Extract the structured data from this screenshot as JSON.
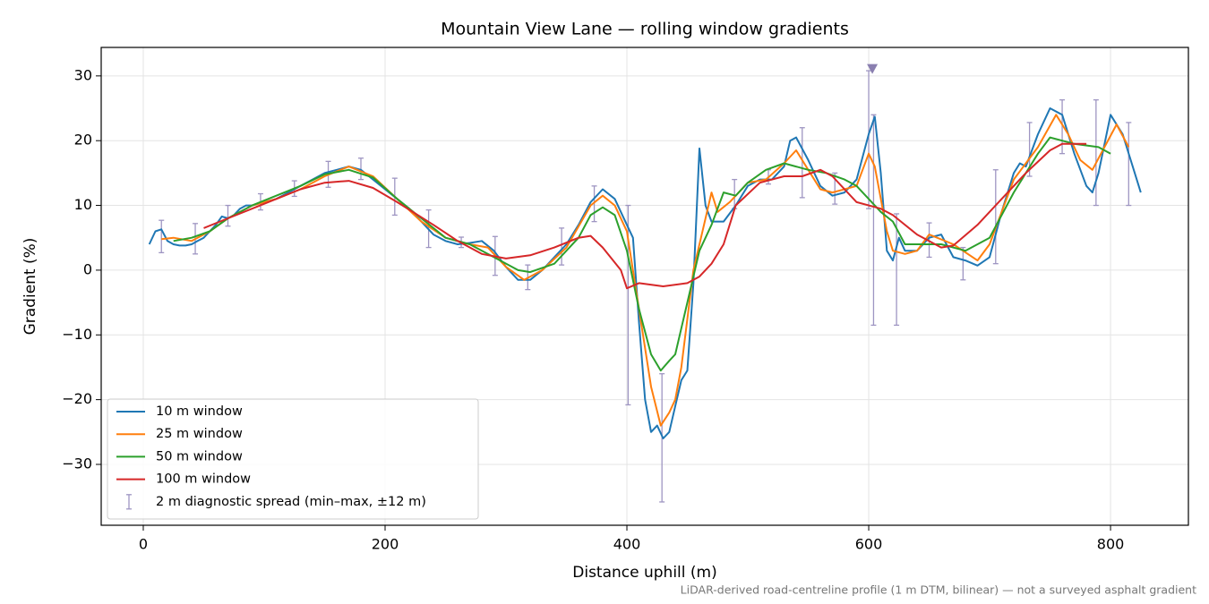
{
  "chart_data": {
    "type": "line",
    "title": "Mountain View Lane — rolling window gradients",
    "x_label": "Distance uphill (m)",
    "y_label": "Gradient (%)",
    "footnote": "LiDAR-derived road-centreline profile (1 m DTM, bilinear) — not a surveyed asphalt gradient",
    "xlim": [
      -34.8,
      864.4
    ],
    "ylim": [
      -39.4,
      34.4
    ],
    "xticks": [
      0,
      200,
      400,
      600,
      800
    ],
    "yticks": [
      {
        "value": -30,
        "label": "−30"
      },
      {
        "value": -20,
        "label": "−20"
      },
      {
        "value": -10,
        "label": "−10"
      },
      0,
      10,
      20,
      30
    ],
    "grid": true,
    "legend": "lower left",
    "series": [
      {
        "name": "10 m window",
        "color": "#1f77b4",
        "x": [
          5,
          10,
          15,
          20,
          25,
          30,
          35,
          40,
          45,
          50,
          55,
          60,
          65,
          70,
          75,
          80,
          85,
          90,
          100,
          110,
          120,
          130,
          140,
          150,
          160,
          170,
          180,
          190,
          200,
          210,
          220,
          230,
          240,
          250,
          260,
          270,
          280,
          290,
          300,
          310,
          320,
          330,
          340,
          350,
          360,
          370,
          380,
          390,
          400,
          405,
          410,
          415,
          420,
          425,
          430,
          435,
          440,
          445,
          450,
          455,
          460,
          465,
          470,
          480,
          490,
          500,
          510,
          520,
          530,
          535,
          540,
          550,
          560,
          570,
          580,
          590,
          600,
          605,
          610,
          615,
          620,
          625,
          630,
          640,
          650,
          660,
          670,
          680,
          690,
          700,
          710,
          720,
          725,
          730,
          740,
          750,
          760,
          770,
          780,
          785,
          790,
          800,
          810,
          820,
          825
        ],
        "values": [
          4,
          6,
          6.3,
          4.5,
          4,
          3.8,
          3.8,
          4,
          4.5,
          5,
          6,
          7,
          8.3,
          8,
          8.5,
          9.5,
          10,
          10,
          10.5,
          11,
          12,
          13,
          14,
          15,
          15.5,
          16,
          15.5,
          14,
          12.5,
          11,
          9.5,
          7.5,
          5.5,
          4.5,
          4,
          4.2,
          4.5,
          3,
          0.5,
          -1.5,
          -1.5,
          0,
          2,
          4,
          7,
          10.5,
          12.5,
          11,
          7,
          5,
          -8,
          -20,
          -25,
          -24,
          -26,
          -25,
          -21,
          -17,
          -15.5,
          -2,
          18.8,
          10,
          7.5,
          7.5,
          10,
          13,
          14,
          14,
          16,
          20,
          20.5,
          17,
          13,
          11.5,
          12,
          14,
          21,
          23.7,
          15,
          3,
          1.5,
          5,
          3,
          3,
          5,
          5.5,
          2,
          1.5,
          0.7,
          2,
          9,
          15,
          16.5,
          16,
          21,
          25,
          24,
          18,
          13,
          12,
          15,
          24,
          21,
          15,
          12
        ]
      },
      {
        "name": "25 m window",
        "color": "#ff7f0e",
        "x": [
          15,
          25,
          40,
          55,
          70,
          90,
          110,
          130,
          150,
          170,
          190,
          210,
          230,
          250,
          270,
          285,
          300,
          315,
          330,
          350,
          370,
          380,
          390,
          400,
          410,
          420,
          428,
          435,
          440,
          445,
          455,
          465,
          470,
          475,
          485,
          500,
          515,
          530,
          540,
          550,
          560,
          570,
          590,
          600,
          605,
          615,
          620,
          630,
          640,
          650,
          670,
          690,
          700,
          710,
          720,
          740,
          755,
          765,
          775,
          785,
          795,
          805,
          815
        ],
        "values": [
          4.8,
          5,
          4.5,
          6,
          8,
          10,
          11,
          12.5,
          14.5,
          16,
          14.5,
          11,
          7.5,
          5,
          4,
          3.5,
          0.5,
          -1.5,
          0,
          3.5,
          10,
          11.5,
          10,
          6,
          -6,
          -18,
          -24,
          -22,
          -20,
          -15,
          0,
          8,
          12,
          9,
          10.5,
          13.5,
          14,
          16.5,
          18.5,
          15.5,
          12.5,
          12,
          13,
          18,
          16,
          6,
          3,
          2.5,
          3,
          5.5,
          4,
          1.5,
          4,
          9,
          14,
          19,
          24,
          21,
          17,
          15.5,
          19,
          22.5,
          19
        ]
      },
      {
        "name": "50 m window",
        "color": "#2ca02c",
        "x": [
          25,
          40,
          55,
          70,
          90,
          110,
          130,
          150,
          170,
          190,
          210,
          230,
          250,
          270,
          290,
          310,
          320,
          340,
          360,
          370,
          380,
          390,
          400,
          410,
          420,
          428,
          435,
          440,
          450,
          460,
          470,
          480,
          490,
          500,
          515,
          530,
          550,
          565,
          580,
          590,
          600,
          610,
          620,
          630,
          640,
          660,
          680,
          700,
          710,
          720,
          740,
          750,
          760,
          770,
          790,
          800
        ],
        "values": [
          4.5,
          5,
          6,
          8,
          10,
          11.5,
          13,
          14.8,
          15.5,
          14.3,
          11,
          8,
          5,
          4,
          2,
          0,
          -0.3,
          1,
          5,
          8.5,
          9.7,
          8.5,
          3,
          -6,
          -13,
          -15.5,
          -14,
          -13,
          -5,
          3,
          7,
          12,
          11.5,
          13.5,
          15.5,
          16.5,
          15.5,
          15,
          14,
          13,
          11,
          9,
          7.5,
          4,
          4,
          4,
          3,
          5,
          8.5,
          12,
          18,
          20.5,
          20,
          19.5,
          19,
          18
        ]
      },
      {
        "name": "100 m window",
        "color": "#d62728",
        "x": [
          50,
          70,
          90,
          110,
          130,
          150,
          170,
          190,
          210,
          240,
          260,
          280,
          300,
          320,
          340,
          360,
          370,
          380,
          395,
          400,
          410,
          430,
          450,
          460,
          470,
          480,
          490,
          510,
          530,
          545,
          560,
          570,
          590,
          610,
          620,
          640,
          660,
          670,
          690,
          710,
          730,
          750,
          760,
          780
        ],
        "values": [
          6.5,
          8,
          9.5,
          11,
          12.5,
          13.5,
          13.8,
          12.7,
          10.5,
          7,
          4.5,
          2.5,
          1.8,
          2.3,
          3.5,
          5,
          5.3,
          3.5,
          0,
          -2.8,
          -2,
          -2.5,
          -2,
          -1,
          1,
          4,
          10,
          13.5,
          14.5,
          14.5,
          15.5,
          14.5,
          10.5,
          9.5,
          8.5,
          5.5,
          3.5,
          3.8,
          7,
          11,
          15,
          18.5,
          19.5,
          19.5
        ]
      }
    ],
    "error_bars": {
      "name": "2 m diagnostic spread (min–max, ±12 m)",
      "color": "#9e95c2",
      "x": [
        15,
        43,
        70,
        97,
        125,
        153,
        180,
        208,
        236,
        263,
        291,
        318,
        346,
        373,
        401,
        429,
        489,
        517,
        545,
        572,
        600,
        604,
        623,
        650,
        678,
        705,
        733,
        760,
        788,
        815
      ],
      "low": [
        2.7,
        2.5,
        6.8,
        9.3,
        11.4,
        12.8,
        14,
        8.5,
        3.5,
        3.5,
        -0.8,
        -3,
        0.8,
        7.5,
        -20.8,
        -35.8,
        9.5,
        13.3,
        11.2,
        10.2,
        9.5,
        -8.5,
        -8.5,
        2,
        -1.5,
        1,
        14.5,
        18,
        10,
        10
      ],
      "high": [
        7.7,
        7.2,
        10,
        11.8,
        13.8,
        16.8,
        17.3,
        14.2,
        9.3,
        5.1,
        5.2,
        0.8,
        6.5,
        13,
        10,
        -16,
        14,
        15.5,
        22,
        15,
        30.8,
        24,
        8.7,
        7.3,
        3.5,
        15.5,
        22.8,
        26.3,
        26.3,
        22.8
      ]
    },
    "peak_marker": {
      "x": 603,
      "y": 31,
      "color": "#8a7fb0"
    }
  }
}
